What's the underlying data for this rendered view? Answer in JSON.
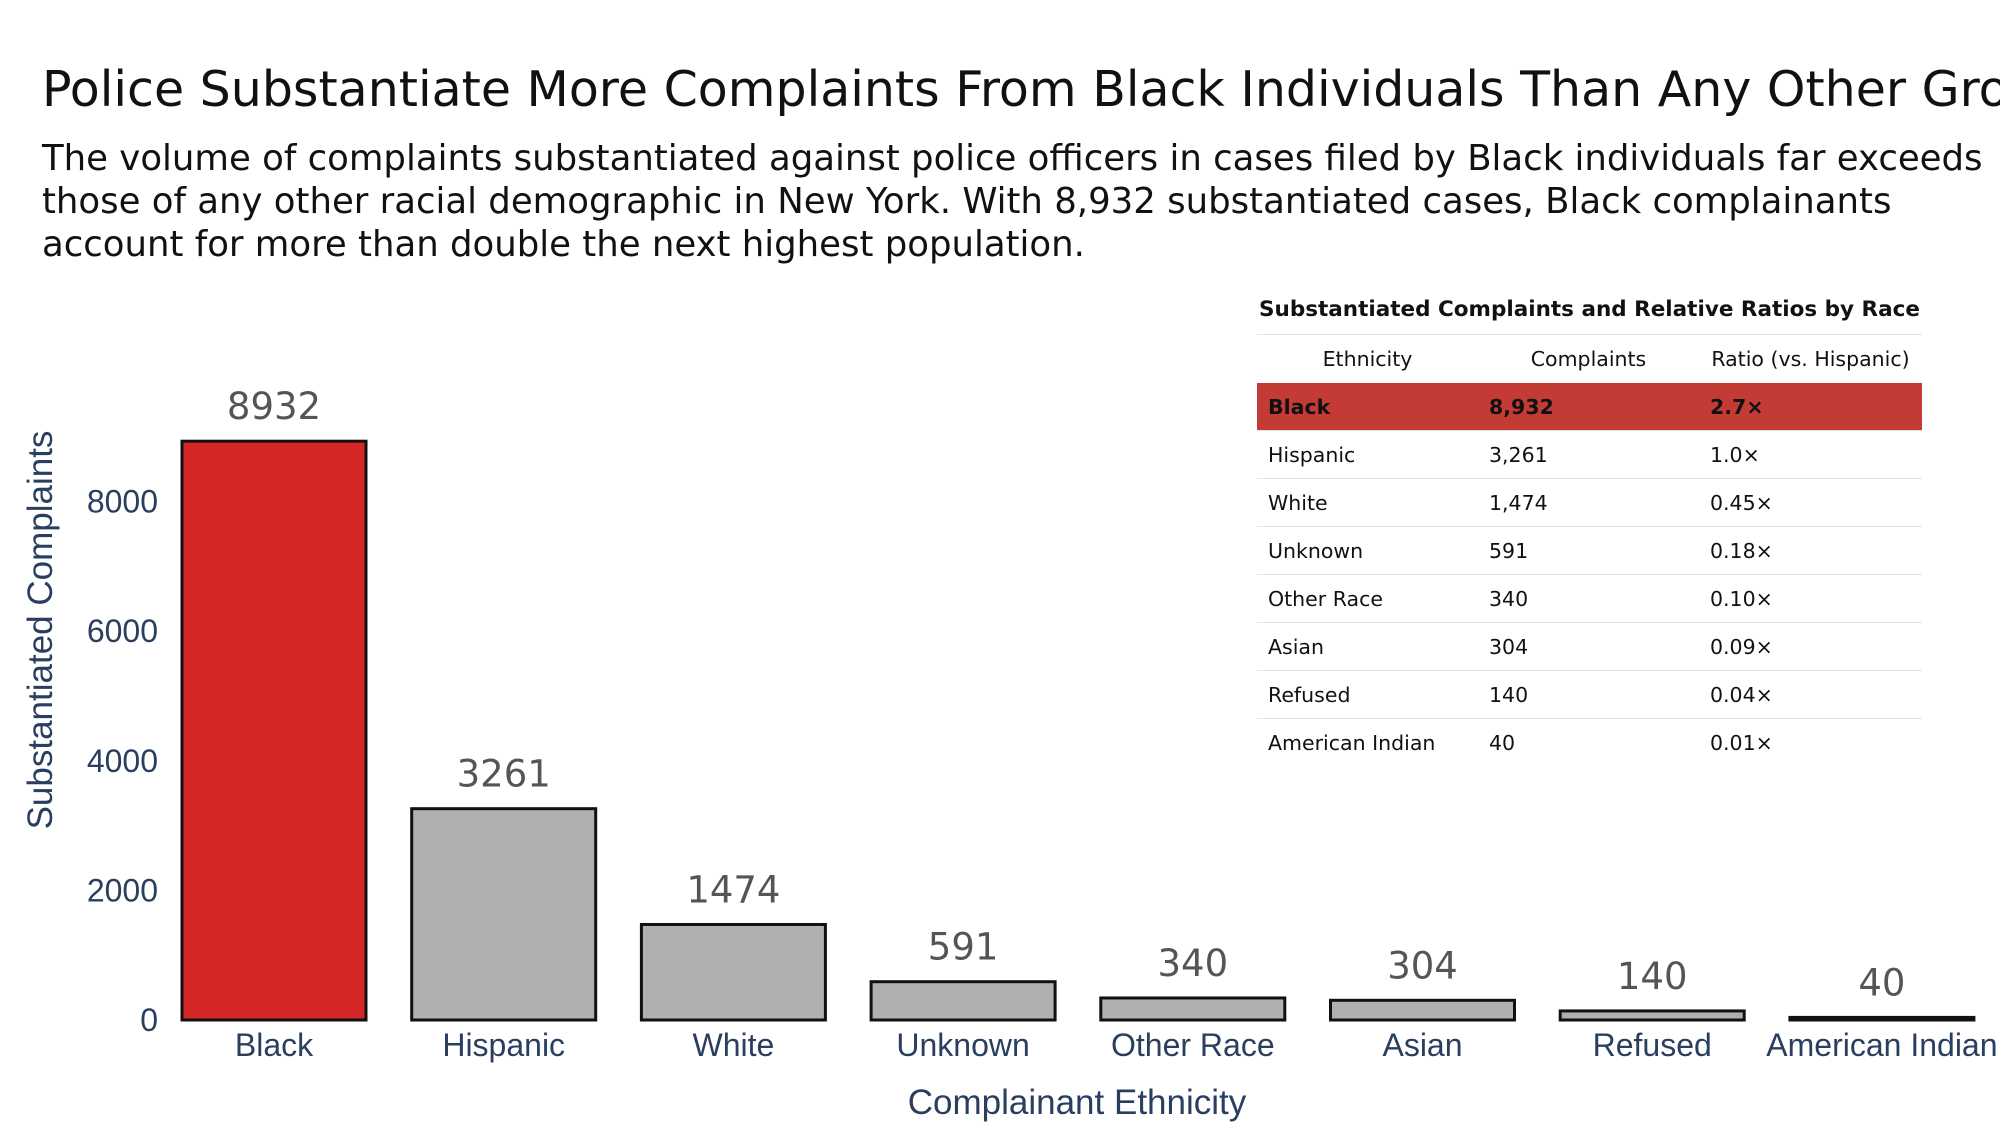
{
  "title": "Police Substantiate More Complaints From Black Individuals Than Any Other Group",
  "subtitle": "The volume of complaints substantiated against police officers in cases filed by Black individuals far exceeds those of any other racial demographic in New York. With 8,932 substantiated cases, Black complainants account for more than double the next highest population.",
  "colors": {
    "highlight_bar": "#d62728",
    "default_bar": "#b0b0b0",
    "axis_text": "#2a3f5f",
    "value_label": "#555555",
    "table_highlight_row": "#c43b36"
  },
  "chart_data": {
    "type": "bar",
    "categories": [
      "Black",
      "Hispanic",
      "White",
      "Unknown",
      "Other Race",
      "Asian",
      "Refused",
      "American Indian"
    ],
    "values": [
      8932,
      3261,
      1474,
      591,
      340,
      304,
      140,
      40
    ],
    "value_labels": [
      "8932",
      "3261",
      "1474",
      "591",
      "340",
      "304",
      "140",
      "40"
    ],
    "highlight_category": "Black",
    "xlabel": "Complainant Ethnicity",
    "ylabel": "Substantiated Complaints",
    "yticks": [
      0,
      2000,
      4000,
      6000,
      8000
    ],
    "ylim": [
      0,
      10000
    ],
    "grid": false
  },
  "table": {
    "caption": "Substantiated Complaints and Relative Ratios by Race",
    "headers": [
      "Ethnicity",
      "Complaints",
      "Ratio (vs. Hispanic)"
    ],
    "rows": [
      {
        "ethnicity": "Black",
        "complaints": "8,932",
        "ratio": "2.7×"
      },
      {
        "ethnicity": "Hispanic",
        "complaints": "3,261",
        "ratio": "1.0×"
      },
      {
        "ethnicity": "White",
        "complaints": "1,474",
        "ratio": "0.45×"
      },
      {
        "ethnicity": "Unknown",
        "complaints": "591",
        "ratio": "0.18×"
      },
      {
        "ethnicity": "Other Race",
        "complaints": "340",
        "ratio": "0.10×"
      },
      {
        "ethnicity": "Asian",
        "complaints": "304",
        "ratio": "0.09×"
      },
      {
        "ethnicity": "Refused",
        "complaints": "140",
        "ratio": "0.04×"
      },
      {
        "ethnicity": "American Indian",
        "complaints": "40",
        "ratio": "0.01×"
      }
    ]
  }
}
